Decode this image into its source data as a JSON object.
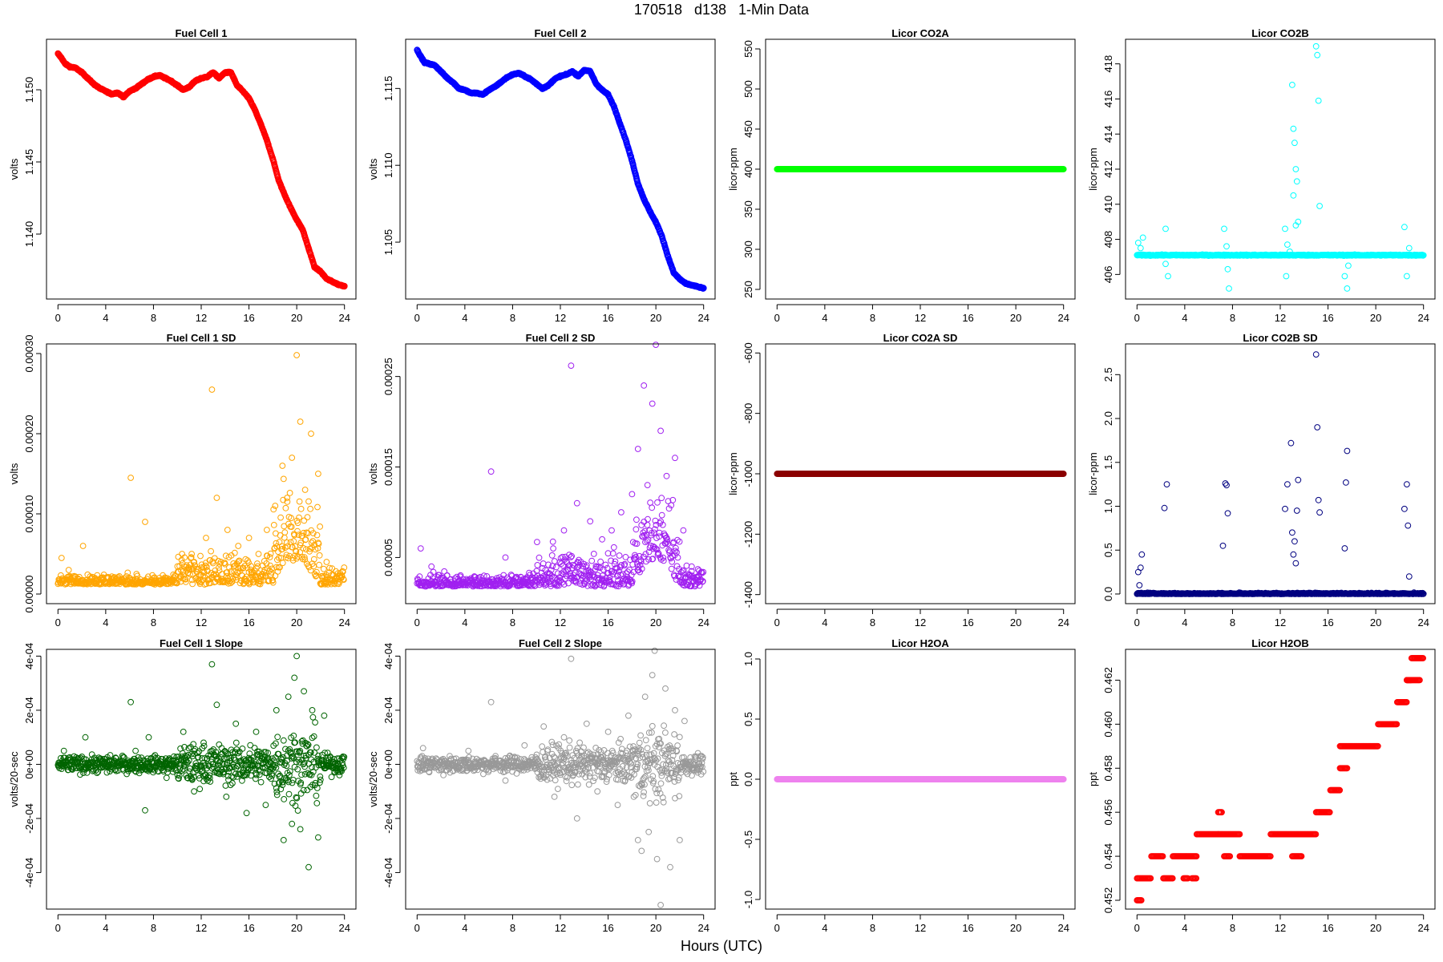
{
  "title": "170518   d138   1-Min Data",
  "xlabel": "Hours (UTC)",
  "chart_data": [
    {
      "id": "fc1",
      "type": "scatter",
      "title": "Fuel Cell 1",
      "ylabel": "volts",
      "color": "#ff0000",
      "xlim": [
        -0.96,
        24.96
      ],
      "ylim": [
        1.1355,
        1.1535
      ],
      "xticks": [
        "0",
        "4",
        "8",
        "12",
        "16",
        "20",
        "24"
      ],
      "yticks": [
        {
          "v": 1.14,
          "label": "1.140"
        },
        {
          "v": 1.145,
          "label": "1.145"
        },
        {
          "v": 1.15,
          "label": "1.150"
        }
      ],
      "x": [
        0,
        0.3,
        0.6,
        1,
        1.5,
        2,
        2.5,
        3,
        3.5,
        4,
        4.5,
        5,
        5.5,
        6,
        6.5,
        7,
        7.5,
        8,
        8.5,
        9,
        9.5,
        10,
        10.5,
        11,
        11.5,
        12,
        12.5,
        13,
        13.5,
        14,
        14.5,
        15,
        15.5,
        16,
        16.5,
        17,
        17.5,
        18,
        18.5,
        19,
        19.5,
        20,
        20.5,
        21,
        21.5,
        22,
        22.5,
        23,
        23.5,
        24
      ],
      "values": [
        1.1525,
        1.1522,
        1.1518,
        1.1516,
        1.1515,
        1.1512,
        1.1508,
        1.1504,
        1.1501,
        1.1499,
        1.1497,
        1.1498,
        1.1495,
        1.1499,
        1.1501,
        1.1504,
        1.1507,
        1.1509,
        1.151,
        1.1508,
        1.1506,
        1.1503,
        1.15,
        1.1502,
        1.1506,
        1.1508,
        1.1509,
        1.1512,
        1.1508,
        1.1512,
        1.1512,
        1.1503,
        1.1499,
        1.1494,
        1.1486,
        1.1476,
        1.1465,
        1.1452,
        1.1437,
        1.1427,
        1.1418,
        1.141,
        1.1403,
        1.139,
        1.1377,
        1.1374,
        1.1369,
        1.1367,
        1.1365,
        1.1364
      ]
    },
    {
      "id": "fc2",
      "type": "scatter",
      "title": "Fuel Cell 2",
      "ylabel": "volts",
      "color": "#0000ff",
      "xlim": [
        -0.96,
        24.96
      ],
      "ylim": [
        1.1013,
        1.1182
      ],
      "xticks": [
        "0",
        "4",
        "8",
        "12",
        "16",
        "20",
        "24"
      ],
      "yticks": [
        {
          "v": 1.105,
          "label": "1.105"
        },
        {
          "v": 1.11,
          "label": "1.110"
        },
        {
          "v": 1.115,
          "label": "1.115"
        }
      ],
      "x": [
        0,
        0.3,
        0.6,
        1,
        1.5,
        2,
        2.5,
        3,
        3.5,
        4,
        4.5,
        5,
        5.5,
        6,
        6.5,
        7,
        7.5,
        8,
        8.5,
        9,
        9.5,
        10,
        10.5,
        11,
        11.5,
        12,
        12.5,
        13,
        13.5,
        14,
        14.5,
        15,
        15.5,
        16,
        16.5,
        17,
        17.5,
        18,
        18.5,
        19,
        19.5,
        20,
        20.5,
        21,
        21.5,
        22,
        22.5,
        23,
        23.5,
        24
      ],
      "values": [
        1.1175,
        1.1171,
        1.1167,
        1.1166,
        1.1165,
        1.1161,
        1.1157,
        1.1154,
        1.115,
        1.1149,
        1.1147,
        1.1147,
        1.1146,
        1.1149,
        1.1151,
        1.1154,
        1.1157,
        1.1159,
        1.116,
        1.1158,
        1.1156,
        1.1153,
        1.115,
        1.1152,
        1.1156,
        1.1158,
        1.1159,
        1.1161,
        1.1158,
        1.1162,
        1.1161,
        1.1153,
        1.1149,
        1.1146,
        1.1138,
        1.1127,
        1.1116,
        1.1103,
        1.1088,
        1.1078,
        1.107,
        1.1063,
        1.1054,
        1.1041,
        1.103,
        1.1026,
        1.1023,
        1.1022,
        1.1021,
        1.102
      ]
    },
    {
      "id": "co2a",
      "type": "scatter",
      "title": "Licor CO2A",
      "ylabel": "licor-ppm",
      "color": "#00ff00",
      "xlim": [
        -0.96,
        24.96
      ],
      "ylim": [
        238,
        562
      ],
      "xticks": [
        "0",
        "4",
        "8",
        "12",
        "16",
        "20",
        "24"
      ],
      "yticks": [
        {
          "v": 250,
          "label": "250"
        },
        {
          "v": 300,
          "label": "300"
        },
        {
          "v": 350,
          "label": "350"
        },
        {
          "v": 400,
          "label": "400"
        },
        {
          "v": 450,
          "label": "450"
        },
        {
          "v": 500,
          "label": "500"
        },
        {
          "v": 550,
          "label": "550"
        }
      ],
      "x": [
        0,
        24
      ],
      "values": [
        400,
        400
      ]
    },
    {
      "id": "co2b",
      "type": "scatter",
      "title": "Licor CO2B",
      "ylabel": "licor-ppm",
      "color": "#00ffff",
      "xlim": [
        -0.96,
        24.96
      ],
      "ylim": [
        404.6,
        419.4
      ],
      "xticks": [
        "0",
        "4",
        "8",
        "12",
        "16",
        "20",
        "24"
      ],
      "yticks": [
        {
          "v": 406,
          "label": "406"
        },
        {
          "v": 408,
          "label": "408"
        },
        {
          "v": 410,
          "label": "410"
        },
        {
          "v": 412,
          "label": "412"
        },
        {
          "v": 414,
          "label": "414"
        },
        {
          "v": 416,
          "label": "416"
        },
        {
          "v": 418,
          "label": "418"
        }
      ],
      "baseline": 407.1,
      "x": [
        0.1,
        0.3,
        0.5,
        2.4,
        2.6,
        2.4,
        7.3,
        7.5,
        7.6,
        7.7,
        12.4,
        12.5,
        12.6,
        12.8,
        13.0,
        13.1,
        13.2,
        13.3,
        13.4,
        13.5,
        15.0,
        15.1,
        15.2,
        15.3,
        17.4,
        17.6,
        17.7,
        22.4,
        22.6,
        22.8,
        13.1,
        13.3
      ],
      "values": [
        407.8,
        407.5,
        408.1,
        408.6,
        405.9,
        406.6,
        408.6,
        407.6,
        406.3,
        405.2,
        408.6,
        405.9,
        407.7,
        407.3,
        416.8,
        414.3,
        413.5,
        412.0,
        411.3,
        409.0,
        419.0,
        418.5,
        415.9,
        409.9,
        405.9,
        405.2,
        406.5,
        408.7,
        405.9,
        407.5,
        410.5,
        408.8
      ]
    },
    {
      "id": "fc1sd",
      "type": "scatter",
      "title": "Fuel Cell 1 SD",
      "ylabel": "volts",
      "color": "#ffa500",
      "xlim": [
        -0.96,
        24.96
      ],
      "ylim": [
        -1.2e-05,
        0.000312
      ],
      "xticks": [
        "0",
        "4",
        "8",
        "12",
        "16",
        "20",
        "24"
      ],
      "yticks": [
        {
          "v": 0,
          "label": "0.00000"
        },
        {
          "v": 0.0001,
          "label": "0.00010"
        },
        {
          "v": 0.0002,
          "label": "0.00020"
        },
        {
          "v": 0.0003,
          "label": "0.00030"
        }
      ],
      "x": [
        0.3,
        0.9,
        2.1,
        3.1,
        4.5,
        6.1,
        7.3,
        8.5,
        10.3,
        11.2,
        12.4,
        12.9,
        13.3,
        14.2,
        15.1,
        16.0,
        16.8,
        17.5,
        18.2,
        18.8,
        19.2,
        19.6,
        20.0,
        20.3,
        20.7,
        21.2,
        21.8,
        22.5,
        23.3
      ],
      "values": [
        4.5e-05,
        3e-05,
        6e-05,
        2e-05,
        1.5e-05,
        0.000145,
        9e-05,
        2e-05,
        3e-05,
        5e-05,
        7e-05,
        0.000255,
        0.00012,
        8e-05,
        6e-05,
        7e-05,
        5e-05,
        8e-05,
        0.00011,
        0.00016,
        0.00012,
        0.00017,
        0.000298,
        0.000215,
        0.00013,
        0.0002,
        0.00015,
        4e-05,
        2e-05
      ]
    },
    {
      "id": "fc2sd",
      "type": "scatter",
      "title": "Fuel Cell 2 SD",
      "ylabel": "volts",
      "color": "#a020f0",
      "xlim": [
        -0.96,
        24.96
      ],
      "ylim": [
        -1e-06,
        0.000286
      ],
      "xticks": [
        "0",
        "4",
        "8",
        "12",
        "16",
        "20",
        "24"
      ],
      "yticks": [
        {
          "v": 5e-05,
          "label": "0.00005"
        },
        {
          "v": 0.00015,
          "label": "0.00015"
        },
        {
          "v": 0.00025,
          "label": "0.00025"
        }
      ],
      "x": [
        0.3,
        1.2,
        2.5,
        3.6,
        4.8,
        6.2,
        7.4,
        8.6,
        10.1,
        11.4,
        12.3,
        12.9,
        13.4,
        14.5,
        15.5,
        16.3,
        17.1,
        18.0,
        18.5,
        19.0,
        19.3,
        19.7,
        20.0,
        20.4,
        20.9,
        21.6,
        22.3,
        23.0,
        23.6
      ],
      "values": [
        6e-05,
        4e-05,
        3e-05,
        2e-05,
        2e-05,
        0.000145,
        5e-05,
        2e-05,
        3e-05,
        6e-05,
        8e-05,
        0.000262,
        0.00011,
        9e-05,
        7e-05,
        8e-05,
        0.0001,
        0.00012,
        0.00017,
        0.00024,
        0.00013,
        0.00022,
        0.000285,
        0.00019,
        0.00014,
        0.00016,
        8e-05,
        4e-05,
        3e-05
      ]
    },
    {
      "id": "co2asd",
      "type": "scatter",
      "title": "Licor CO2A SD",
      "ylabel": "licor-ppm",
      "color": "#8b0000",
      "xlim": [
        -0.96,
        24.96
      ],
      "ylim": [
        -1430,
        -570
      ],
      "xticks": [
        "0",
        "4",
        "8",
        "12",
        "16",
        "20",
        "24"
      ],
      "yticks": [
        {
          "v": -1400,
          "label": "-1400"
        },
        {
          "v": -1200,
          "label": "-1200"
        },
        {
          "v": -1000,
          "label": "-1000"
        },
        {
          "v": -800,
          "label": "-800"
        },
        {
          "v": -600,
          "label": "-600"
        }
      ],
      "x": [
        0,
        24
      ],
      "values": [
        -1000,
        -1000
      ]
    },
    {
      "id": "co2bsd",
      "type": "scatter",
      "title": "Licor CO2B SD",
      "ylabel": "licor-ppm",
      "color": "#000080",
      "xlim": [
        -0.96,
        24.96
      ],
      "ylim": [
        -0.11,
        2.85
      ],
      "xticks": [
        "0",
        "4",
        "8",
        "12",
        "16",
        "20",
        "24"
      ],
      "yticks": [
        {
          "v": 0,
          "label": "0.0"
        },
        {
          "v": 0.5,
          "label": "0.5"
        },
        {
          "v": 1,
          "label": "1.0"
        },
        {
          "v": 1.5,
          "label": "1.5"
        },
        {
          "v": 2,
          "label": "2.0"
        },
        {
          "v": 2.5,
          "label": "2.5"
        }
      ],
      "x": [
        0.1,
        0.2,
        0.3,
        0.4,
        2.3,
        2.5,
        7.2,
        7.4,
        7.5,
        7.6,
        12.4,
        12.6,
        12.9,
        13.0,
        13.1,
        13.2,
        13.3,
        13.4,
        13.5,
        15.0,
        15.1,
        15.2,
        15.3,
        17.4,
        17.5,
        17.6,
        22.4,
        22.6,
        22.7,
        22.8
      ],
      "values": [
        0.25,
        0.1,
        0.3,
        0.45,
        0.98,
        1.25,
        0.55,
        1.26,
        1.24,
        0.92,
        0.97,
        1.25,
        1.72,
        0.7,
        0.45,
        0.6,
        0.35,
        0.95,
        1.3,
        2.73,
        1.9,
        1.07,
        0.93,
        0.52,
        1.27,
        1.63,
        0.97,
        1.25,
        0.78,
        0.2
      ]
    },
    {
      "id": "fc1slope",
      "type": "scatter",
      "title": "Fuel Cell 1 Slope",
      "ylabel": "volts/20-sec",
      "color": "#006400",
      "xlim": [
        -0.96,
        24.96
      ],
      "ylim": [
        -0.000535,
        0.000425
      ],
      "xticks": [
        "0",
        "4",
        "8",
        "12",
        "16",
        "20",
        "24"
      ],
      "yticks": [
        {
          "v": -0.0004,
          "label": "-4e-04"
        },
        {
          "v": -0.0002,
          "label": "-2e-04"
        },
        {
          "v": 0,
          "label": "0e+00"
        },
        {
          "v": 0.0002,
          "label": "2e-04"
        },
        {
          "v": 0.0004,
          "label": "4e-04"
        }
      ],
      "x": [
        0.5,
        2.3,
        4.1,
        6.1,
        6.5,
        7.3,
        7.6,
        9.1,
        10.5,
        11.4,
        12.2,
        12.9,
        13.3,
        14.1,
        14.9,
        15.8,
        16.6,
        17.4,
        18.3,
        18.9,
        19.3,
        19.6,
        19.8,
        20.0,
        20.3,
        20.6,
        21.0,
        21.3,
        21.8,
        22.3,
        23.4
      ],
      "values": [
        5e-05,
        0.0001,
        -3e-05,
        0.00023,
        5e-05,
        -0.00017,
        0.0001,
        -5e-05,
        0.00012,
        -0.0001,
        8e-05,
        0.00037,
        0.00022,
        -0.00012,
        0.00015,
        -0.00018,
        0.00012,
        -0.00015,
        0.0002,
        -0.00028,
        0.00025,
        -0.00022,
        0.00032,
        0.0004,
        -0.00024,
        0.00027,
        -0.00038,
        0.0002,
        -0.00027,
        0.00018,
        -2e-05
      ]
    },
    {
      "id": "fc2slope",
      "type": "scatter",
      "title": "Fuel Cell 2 Slope",
      "ylabel": "volts/20-sec",
      "color": "#999999",
      "xlim": [
        -0.96,
        24.96
      ],
      "ylim": [
        -0.000535,
        0.000425
      ],
      "xticks": [
        "0",
        "4",
        "8",
        "12",
        "16",
        "20",
        "24"
      ],
      "yticks": [
        {
          "v": -0.0004,
          "label": "-4e-04"
        },
        {
          "v": -0.0002,
          "label": "-2e-04"
        },
        {
          "v": 0,
          "label": "0e+00"
        },
        {
          "v": 0.0002,
          "label": "2e-04"
        },
        {
          "v": 0.0004,
          "label": "4e-04"
        }
      ],
      "x": [
        0.5,
        2.2,
        4.3,
        6.2,
        7.4,
        9.0,
        10.6,
        11.5,
        12.3,
        12.9,
        13.4,
        14.2,
        15.1,
        16.0,
        16.8,
        17.7,
        18.5,
        18.8,
        19.1,
        19.4,
        19.7,
        19.9,
        20.1,
        20.4,
        20.8,
        21.2,
        21.6,
        22.0,
        22.4,
        23.5
      ],
      "values": [
        6e-05,
        -4e-05,
        5e-05,
        0.00023,
        -6e-05,
        7e-05,
        0.00014,
        -0.00012,
        0.0001,
        0.00039,
        -0.0002,
        0.00015,
        -0.0001,
        0.00012,
        -0.00015,
        0.00018,
        -0.00028,
        -0.00032,
        0.00025,
        -0.00025,
        0.00033,
        0.00042,
        -0.00035,
        -0.00052,
        0.00028,
        -0.00038,
        0.0002,
        -0.00028,
        0.00016,
        -3e-05
      ]
    },
    {
      "id": "h2oa",
      "type": "scatter",
      "title": "Licor H2OA",
      "ylabel": "ppt",
      "color": "#ee82ee",
      "xlim": [
        -0.96,
        24.96
      ],
      "ylim": [
        -1.08,
        1.08
      ],
      "xticks": [
        "0",
        "4",
        "8",
        "12",
        "16",
        "20",
        "24"
      ],
      "yticks": [
        {
          "v": -1,
          "label": "-1.0"
        },
        {
          "v": -0.5,
          "label": "-0.5"
        },
        {
          "v": 0,
          "label": "0.0"
        },
        {
          "v": 0.5,
          "label": "0.5"
        },
        {
          "v": 1,
          "label": "1.0"
        }
      ],
      "x": [
        0,
        24
      ],
      "values": [
        0,
        0
      ]
    },
    {
      "id": "h2ob",
      "type": "scatter",
      "title": "Licor H2OB",
      "ylabel": "ppt",
      "color": "#ff0000",
      "xlim": [
        -0.96,
        24.96
      ],
      "ylim": [
        0.4516,
        0.4634
      ],
      "xticks": [
        "0",
        "4",
        "8",
        "12",
        "16",
        "20",
        "24"
      ],
      "yticks": [
        {
          "v": 0.452,
          "label": "0.452"
        },
        {
          "v": 0.454,
          "label": "0.454"
        },
        {
          "v": 0.456,
          "label": "0.456"
        },
        {
          "v": 0.458,
          "label": "0.458"
        },
        {
          "v": 0.46,
          "label": "0.460"
        },
        {
          "v": 0.462,
          "label": "0.462"
        }
      ],
      "segments": [
        [
          0,
          0.4,
          0.452
        ],
        [
          0,
          1.2,
          0.453
        ],
        [
          1.2,
          2.2,
          0.454
        ],
        [
          2.2,
          3.0,
          0.453
        ],
        [
          3.0,
          5.0,
          0.454
        ],
        [
          3.9,
          4.3,
          0.453
        ],
        [
          4.6,
          5.0,
          0.453
        ],
        [
          5.0,
          6.8,
          0.455
        ],
        [
          6.8,
          7.1,
          0.456
        ],
        [
          6.8,
          8.6,
          0.455
        ],
        [
          7.3,
          7.8,
          0.454
        ],
        [
          8.6,
          11.2,
          0.454
        ],
        [
          11.2,
          15.0,
          0.455
        ],
        [
          13.0,
          13.8,
          0.454
        ],
        [
          15.0,
          16.2,
          0.456
        ],
        [
          16.2,
          17.0,
          0.457
        ],
        [
          17.0,
          20.2,
          0.459
        ],
        [
          17.0,
          17.6,
          0.458
        ],
        [
          20.2,
          21.8,
          0.46
        ],
        [
          21.8,
          22.6,
          0.461
        ],
        [
          22.6,
          23.0,
          0.462
        ],
        [
          23.0,
          24.0,
          0.463
        ],
        [
          22.6,
          23.7,
          0.462
        ]
      ]
    }
  ]
}
